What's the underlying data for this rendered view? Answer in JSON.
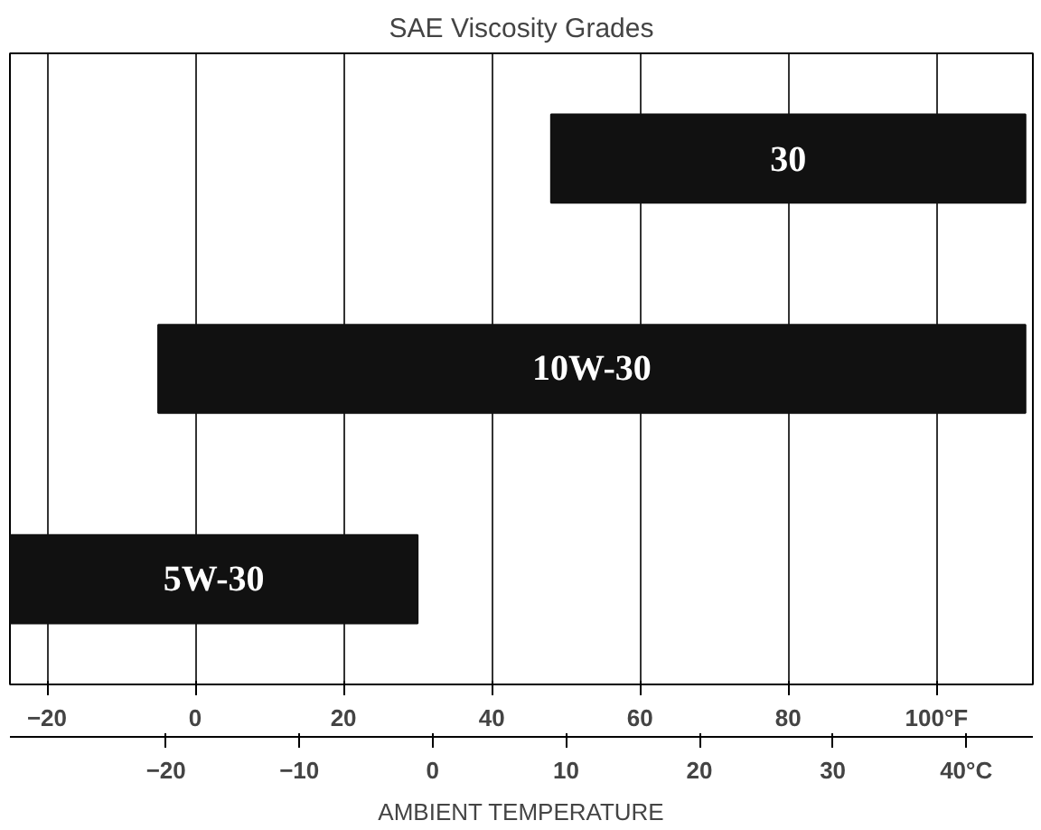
{
  "chart_data": {
    "type": "bar",
    "orientation": "horizontal",
    "title": "SAE Viscosity Grades",
    "x2label": "AMBIENT TEMPERATURE",
    "categories": [
      "30",
      "10W-30",
      "5W-30"
    ],
    "values": [
      64,
      117,
      55
    ],
    "base": [
      48,
      -5,
      -25
    ],
    "color": "#111111",
    "xlim": [
      -25,
      113
    ],
    "xticks": [
      -20,
      0,
      20,
      40,
      60,
      80,
      {
        "value": 100,
        "label": "100°F"
      }
    ],
    "x2lim": [
      -31.7,
      45.0
    ],
    "x2ticks": [
      -20,
      -10,
      0,
      10,
      20,
      30,
      {
        "value": 40,
        "label": "40°C"
      }
    ],
    "grid": "x",
    "tick_labels": "x"
  }
}
